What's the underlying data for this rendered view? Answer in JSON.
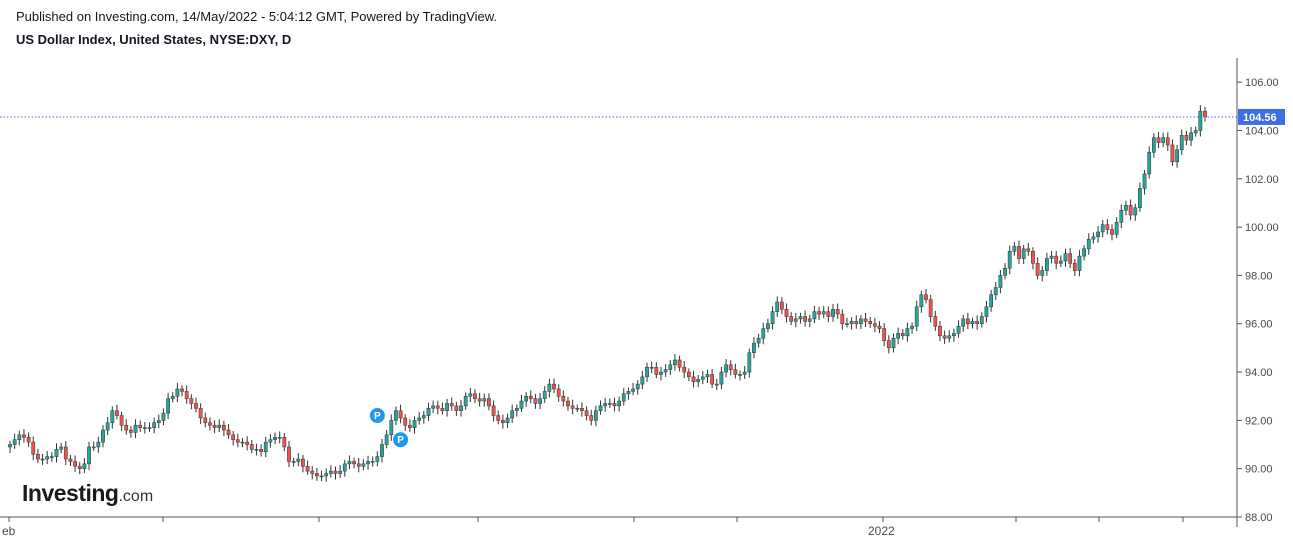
{
  "header": {
    "published": "Published on Investing.com, 14/May/2022 - 5:04:12 GMT, Powered by TradingView.",
    "title": "US Dollar Index, United States, NYSE:DXY, D"
  },
  "logo": {
    "brand": "Investing",
    "suffix": ".com"
  },
  "colors": {
    "up": "#26a69a",
    "down": "#ef5350",
    "last_price": "#3d6ee8",
    "marker": "#2196f3"
  },
  "chart_data": {
    "type": "candlestick",
    "title": "US Dollar Index, United States, NYSE:DXY, D",
    "ylim": [
      88,
      107
    ],
    "y_ticks": [
      "88.00",
      "90.00",
      "92.00",
      "94.00",
      "96.00",
      "98.00",
      "100.00",
      "102.00",
      "104.00",
      "106.00"
    ],
    "x_labels": [
      "eb",
      "2022"
    ],
    "last_price": 104.56,
    "last_price_label": "104.56",
    "markers": [
      {
        "label": "P",
        "date_index": 79,
        "value": 92.2
      },
      {
        "label": "P",
        "date_index": 84,
        "value": 91.2
      }
    ],
    "close": [
      91.0,
      91.2,
      91.4,
      91.3,
      91.1,
      90.6,
      90.4,
      90.4,
      90.5,
      90.5,
      90.8,
      90.9,
      90.4,
      90.3,
      90.1,
      90.0,
      90.2,
      90.9,
      90.9,
      91.1,
      91.6,
      91.9,
      92.4,
      92.2,
      91.8,
      91.6,
      91.5,
      91.8,
      91.7,
      91.7,
      91.7,
      91.9,
      92.0,
      92.3,
      92.9,
      93.0,
      93.3,
      93.2,
      92.9,
      92.7,
      92.5,
      92.1,
      91.9,
      91.8,
      91.7,
      91.8,
      91.6,
      91.4,
      91.2,
      91.1,
      91.1,
      91.0,
      90.8,
      90.8,
      90.7,
      91.1,
      91.2,
      91.3,
      91.3,
      90.9,
      90.3,
      90.3,
      90.4,
      90.1,
      89.9,
      89.8,
      89.7,
      89.7,
      89.8,
      89.9,
      89.8,
      89.9,
      90.2,
      90.3,
      90.2,
      90.1,
      90.2,
      90.3,
      90.3,
      90.5,
      91.0,
      91.4,
      92.0,
      92.4,
      92.1,
      91.8,
      91.7,
      92.0,
      92.1,
      92.2,
      92.5,
      92.6,
      92.5,
      92.4,
      92.7,
      92.6,
      92.4,
      92.6,
      93.0,
      93.1,
      92.9,
      92.8,
      92.9,
      92.6,
      92.2,
      92.0,
      91.9,
      92.1,
      92.4,
      92.5,
      92.8,
      93.0,
      92.9,
      92.7,
      92.9,
      93.2,
      93.5,
      93.3,
      93.0,
      92.8,
      92.6,
      92.5,
      92.5,
      92.4,
      92.2,
      92.0,
      92.4,
      92.6,
      92.7,
      92.7,
      92.6,
      92.8,
      93.1,
      93.2,
      93.3,
      93.5,
      93.8,
      94.2,
      94.2,
      93.9,
      94.0,
      94.1,
      94.3,
      94.5,
      94.2,
      94.0,
      93.8,
      93.6,
      93.7,
      93.8,
      93.9,
      93.5,
      93.5,
      94.0,
      94.3,
      94.1,
      93.9,
      93.9,
      94.0,
      94.8,
      95.2,
      95.4,
      95.8,
      96.0,
      96.5,
      96.9,
      96.6,
      96.3,
      96.1,
      96.2,
      96.3,
      96.1,
      96.2,
      96.5,
      96.4,
      96.5,
      96.3,
      96.6,
      96.4,
      96.0,
      96.0,
      96.1,
      96.0,
      96.2,
      96.1,
      96.0,
      95.9,
      95.8,
      95.3,
      95.0,
      95.4,
      95.6,
      95.5,
      95.8,
      95.9,
      96.7,
      97.2,
      97.0,
      96.3,
      95.9,
      95.5,
      95.4,
      95.5,
      95.6,
      95.9,
      96.2,
      96.0,
      96.1,
      96.0,
      96.3,
      96.7,
      97.2,
      97.5,
      98.0,
      98.3,
      99.0,
      99.2,
      98.7,
      99.1,
      99.0,
      98.5,
      98.0,
      98.2,
      98.7,
      98.8,
      98.5,
      98.6,
      98.9,
      98.5,
      98.2,
      98.8,
      99.1,
      99.5,
      99.6,
      99.8,
      100.1,
      99.9,
      99.7,
      100.2,
      100.7,
      100.9,
      100.5,
      100.8,
      101.6,
      102.2,
      103.1,
      103.7,
      103.5,
      103.7,
      103.4,
      102.7,
      103.2,
      103.8,
      103.6,
      103.9,
      104.0,
      104.8,
      104.56
    ]
  }
}
